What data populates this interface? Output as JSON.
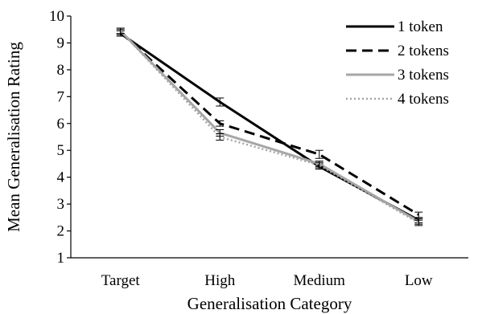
{
  "chart_data": {
    "type": "line",
    "xlabel": "Generalisation Category",
    "ylabel": "Mean Generalisation Rating",
    "categories": [
      "Target",
      "High",
      "Medium",
      "Low"
    ],
    "ylim": [
      1,
      10
    ],
    "yticks": [
      "1",
      "2",
      "3",
      "4",
      "5",
      "6",
      "7",
      "8",
      "9",
      "10"
    ],
    "legend_position": "top-right",
    "grid": false,
    "series": [
      {
        "name": "1 token",
        "values": [
          9.35,
          6.8,
          4.4,
          2.4
        ],
        "errors": [
          0.1,
          0.15,
          0.1,
          0.1
        ],
        "color": "#000000",
        "dash": "solid"
      },
      {
        "name": "2 tokens",
        "values": [
          9.4,
          6.0,
          4.85,
          2.6
        ],
        "errors": [
          0.1,
          0.1,
          0.15,
          0.1
        ],
        "color": "#000000",
        "dash": "dashed"
      },
      {
        "name": "3 tokens",
        "values": [
          9.45,
          5.65,
          4.5,
          2.35
        ],
        "errors": [
          0.1,
          0.12,
          0.1,
          0.1
        ],
        "color": "#a6a6a6",
        "dash": "solid"
      },
      {
        "name": "4 tokens",
        "values": [
          9.45,
          5.5,
          4.45,
          2.3
        ],
        "errors": [
          0.1,
          0.12,
          0.1,
          0.1
        ],
        "color": "#a6a6a6",
        "dash": "dotted"
      }
    ]
  }
}
